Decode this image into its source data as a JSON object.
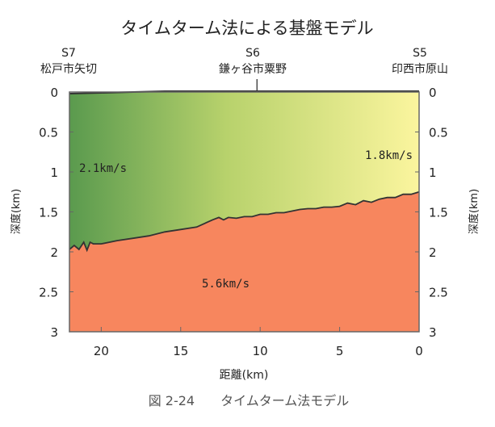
{
  "chart_data": {
    "type": "area",
    "title": "タイムターム法による基盤モデル",
    "xlabel": "距離(km)",
    "ylabel_left": "深度(km)",
    "ylabel_right": "深度(km)",
    "xlim": [
      22,
      0
    ],
    "ylim": [
      0,
      3
    ],
    "x_ticks": [
      "20",
      "15",
      "10",
      "5",
      "0"
    ],
    "y_ticks": [
      "0",
      "0.5",
      "1",
      "1.5",
      "2",
      "2.5",
      "3"
    ],
    "stations": [
      {
        "code": "S7",
        "name": "松戸市矢切",
        "x": 22
      },
      {
        "code": "S6",
        "name": "鎌ヶ谷市粟野",
        "x": 10.2
      },
      {
        "code": "S5",
        "name": "印西市原山",
        "x": 0
      }
    ],
    "surface_line": {
      "x": [
        22,
        20,
        18,
        16,
        14,
        12,
        10,
        8,
        6,
        4,
        2,
        0
      ],
      "y": [
        0.02,
        0.01,
        0.0,
        -0.01,
        -0.01,
        -0.01,
        -0.01,
        -0.01,
        -0.01,
        -0.01,
        -0.01,
        -0.01
      ]
    },
    "basement_boundary": {
      "x": [
        22,
        21.7,
        21.4,
        21.1,
        20.9,
        20.7,
        20.5,
        20,
        19,
        18,
        17,
        16,
        15,
        14,
        13,
        12.6,
        12.3,
        12,
        11.5,
        11,
        10.5,
        10,
        9.5,
        9,
        8.5,
        8,
        7.5,
        7,
        6.5,
        6,
        5.5,
        5,
        4.5,
        4,
        3.5,
        3,
        2.5,
        2,
        1.5,
        1,
        0.5,
        0
      ],
      "y": [
        1.97,
        1.92,
        1.97,
        1.88,
        1.98,
        1.88,
        1.9,
        1.9,
        1.86,
        1.83,
        1.8,
        1.75,
        1.72,
        1.69,
        1.6,
        1.57,
        1.6,
        1.57,
        1.58,
        1.56,
        1.56,
        1.53,
        1.53,
        1.51,
        1.51,
        1.49,
        1.47,
        1.46,
        1.46,
        1.44,
        1.44,
        1.43,
        1.39,
        1.41,
        1.36,
        1.38,
        1.34,
        1.32,
        1.32,
        1.28,
        1.28,
        1.25
      ]
    },
    "layers": [
      {
        "label": "2.1km/s",
        "color": "#5a9a4e"
      },
      {
        "label": "1.8km/s",
        "color": "#fbf59e"
      },
      {
        "label": "5.6km/s",
        "color": "#f7865e"
      }
    ],
    "caption": "図 2-24　　タイムターム法モデル"
  }
}
